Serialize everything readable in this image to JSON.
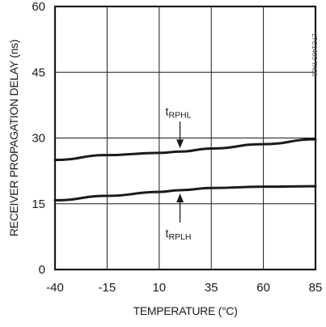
{
  "chart_data": {
    "type": "line",
    "xlabel": "TEMPERATURE (°C)",
    "ylabel": "RECEIVER PROPAGATION DELAY (ns)",
    "xlim": [
      -40,
      85
    ],
    "ylim": [
      0,
      60
    ],
    "x_ticks": [
      -40,
      -15,
      10,
      35,
      60,
      85
    ],
    "y_ticks": [
      0,
      15,
      30,
      45,
      60
    ],
    "x_tick_labels": [
      "-40",
      "-15",
      "10",
      "35",
      "60",
      "85"
    ],
    "y_tick_labels": [
      "0",
      "15",
      "30",
      "45",
      "60"
    ],
    "grid": true,
    "legend": "none",
    "series": [
      {
        "name": "tRPHL",
        "x": [
          -40,
          -15,
          10,
          20,
          35,
          60,
          85
        ],
        "y": [
          25,
          26.1,
          26.6,
          26.9,
          27.6,
          28.6,
          29.7
        ]
      },
      {
        "name": "tRPLH",
        "x": [
          -40,
          -15,
          10,
          20,
          35,
          60,
          85
        ],
        "y": [
          15.8,
          16.8,
          17.7,
          18.1,
          18.6,
          18.9,
          19.0
        ]
      }
    ],
    "annotations": [
      {
        "label_main": "t",
        "label_sub": "RPHL",
        "series": "tRPHL",
        "at_x": 20,
        "side": "above"
      },
      {
        "label_main": "t",
        "label_sub": "RPLH",
        "series": "tRPLH",
        "at_x": 20,
        "side": "below"
      }
    ],
    "watermark": "LTC1485 TA08"
  },
  "style": {
    "line_color": "#1a1a1a",
    "grid_color": "#1a1a1a",
    "background": "#ffffff"
  }
}
